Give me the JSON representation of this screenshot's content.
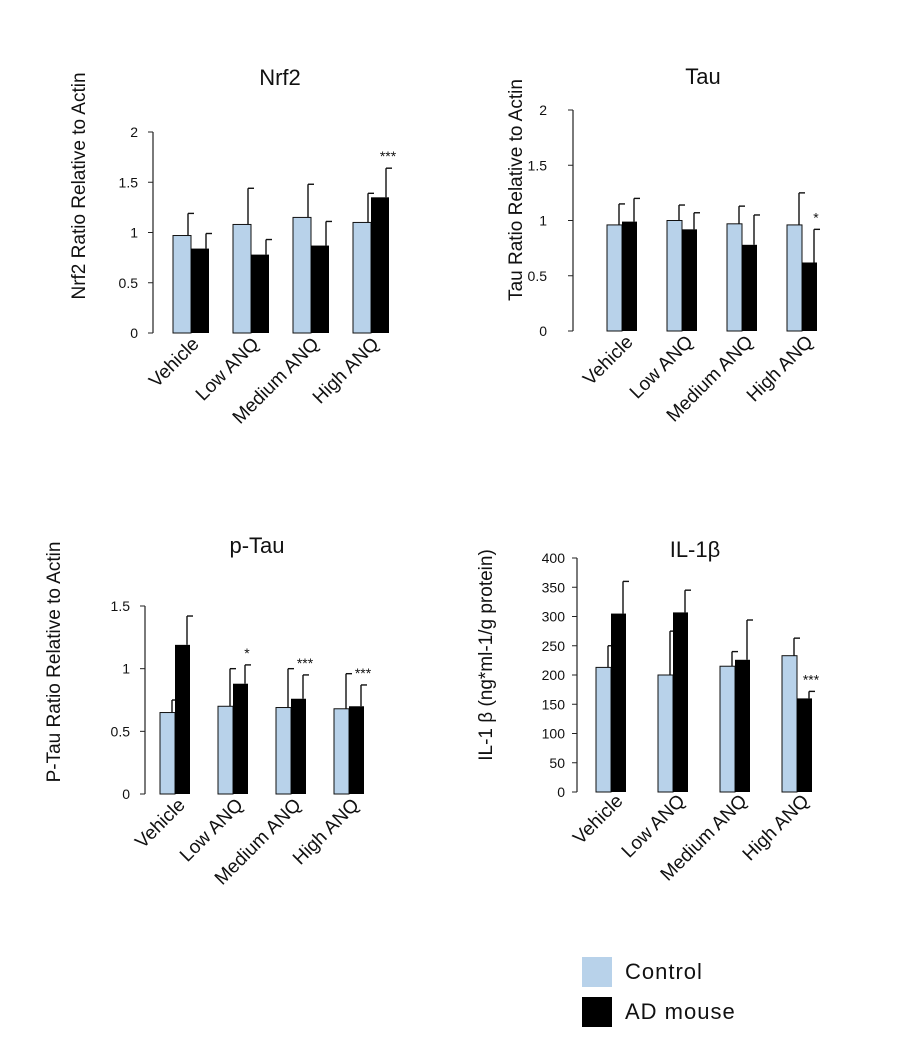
{
  "chart_data": [
    {
      "type": "bar",
      "title": "Nrf2",
      "ylabel": "Nrf2 Ratio Relative to Actin",
      "xlabel": "",
      "categories": [
        "Vehicle",
        "Low ANQ",
        "Medium ANQ",
        "High ANQ"
      ],
      "ylim": [
        0,
        2
      ],
      "yticks": [
        "0",
        "0.5",
        "1",
        "1.5",
        "2"
      ],
      "series": [
        {
          "name": "Control",
          "values": [
            0.97,
            1.08,
            1.15,
            1.1
          ],
          "errors": [
            0.22,
            0.36,
            0.33,
            0.29
          ]
        },
        {
          "name": "AD mouse",
          "values": [
            0.84,
            0.78,
            0.87,
            1.35
          ],
          "errors": [
            0.15,
            0.15,
            0.24,
            0.29
          ]
        }
      ],
      "annotations": [
        {
          "category": "High ANQ",
          "series": "AD mouse",
          "text": "***"
        }
      ]
    },
    {
      "type": "bar",
      "title": "Tau",
      "ylabel": "Tau Ratio Relative to Actin",
      "xlabel": "",
      "categories": [
        "Vehicle",
        "Low ANQ",
        "Medium ANQ",
        "High ANQ"
      ],
      "ylim": [
        0,
        2
      ],
      "yticks": [
        "0",
        "0.5",
        "1",
        "1.5",
        "2"
      ],
      "series": [
        {
          "name": "Control",
          "values": [
            0.96,
            1.0,
            0.97,
            0.96
          ],
          "errors": [
            0.19,
            0.14,
            0.16,
            0.29
          ]
        },
        {
          "name": "AD mouse",
          "values": [
            0.99,
            0.92,
            0.78,
            0.62
          ],
          "errors": [
            0.21,
            0.15,
            0.27,
            0.3
          ]
        }
      ],
      "annotations": [
        {
          "category": "High ANQ",
          "series": "AD mouse",
          "text": "*"
        }
      ]
    },
    {
      "type": "bar",
      "title": "p-Tau",
      "ylabel": "P-Tau Ratio Relative to Actin",
      "xlabel": "",
      "categories": [
        "Vehicle",
        "Low ANQ",
        "Medium ANQ",
        "High ANQ"
      ],
      "ylim": [
        0,
        1.5
      ],
      "yticks": [
        "0",
        "0.5",
        "1",
        "1.5"
      ],
      "series": [
        {
          "name": "Control",
          "values": [
            0.65,
            0.7,
            0.69,
            0.68
          ],
          "errors": [
            0.1,
            0.3,
            0.31,
            0.28
          ]
        },
        {
          "name": "AD mouse",
          "values": [
            1.19,
            0.88,
            0.76,
            0.7
          ],
          "errors": [
            0.23,
            0.15,
            0.19,
            0.17
          ]
        }
      ],
      "annotations": [
        {
          "category": "Low ANQ",
          "series": "AD mouse",
          "text": "*"
        },
        {
          "category": "Medium ANQ",
          "series": "AD mouse",
          "text": "***"
        },
        {
          "category": "High ANQ",
          "series": "AD mouse",
          "text": "***"
        }
      ]
    },
    {
      "type": "bar",
      "title": "IL-1β",
      "ylabel": "IL-1 β (ng*ml-1/g protein)",
      "xlabel": "",
      "categories": [
        "Vehicle",
        "Low ANQ",
        "Medium ANQ",
        "High ANQ"
      ],
      "ylim": [
        0,
        400
      ],
      "yticks": [
        "0",
        "50",
        "100",
        "150",
        "200",
        "250",
        "300",
        "350",
        "400"
      ],
      "series": [
        {
          "name": "Control",
          "values": [
            213,
            200,
            215,
            233
          ],
          "errors": [
            37,
            75,
            25,
            30
          ]
        },
        {
          "name": "AD mouse",
          "values": [
            305,
            307,
            226,
            160
          ],
          "errors": [
            55,
            38,
            68,
            12
          ]
        }
      ],
      "annotations": [
        {
          "category": "High ANQ",
          "series": "AD mouse",
          "text": "***"
        }
      ]
    }
  ],
  "legend": [
    {
      "label": "Control",
      "color": "#b8d2ea"
    },
    {
      "label": "AD mouse",
      "color": "#000000"
    }
  ],
  "colors": {
    "control_fill": "#b8d2ea",
    "ad_fill": "#000000",
    "axis": "#222222"
  }
}
